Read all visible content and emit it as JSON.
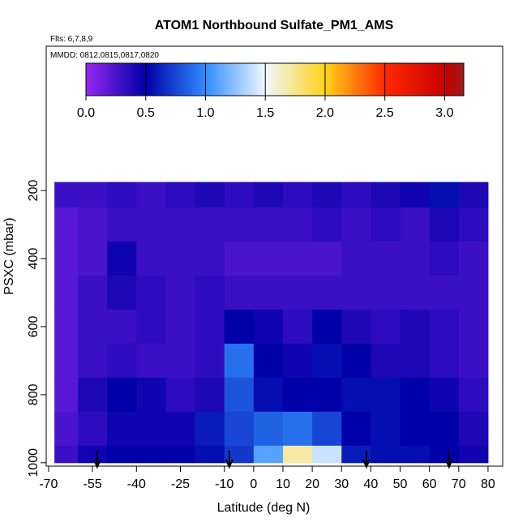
{
  "chart_data": {
    "type": "heatmap",
    "title": "ATOM1 Northbound Sulfate_PM1_AMS",
    "subtitle": "Flts: 6,7,8,9",
    "annotation": "MMDD: 0812,0815,0817,0820",
    "x_label": "Latitude (deg N)",
    "y_label": "PSXC (mbar)",
    "xlim": [
      -70.8,
      85
    ],
    "ylim": [
      1010,
      -224
    ],
    "xticks": [
      -70,
      -55,
      -40,
      -25,
      -10,
      0,
      10,
      20,
      30,
      40,
      50,
      60,
      70,
      80
    ],
    "yticks": [
      200,
      400,
      600,
      800,
      1000
    ],
    "x_edges": [
      -68,
      -60,
      -50,
      -40,
      -30,
      -20,
      -10,
      0,
      10,
      20,
      30,
      40,
      50,
      60,
      70,
      80
    ],
    "y_edges": [
      175,
      250,
      350,
      450,
      550,
      650,
      750,
      850,
      950,
      1000
    ],
    "z": [
      [
        0.3,
        0.3,
        0.35,
        0.3,
        0.35,
        0.4,
        0.35,
        0.4,
        0.35,
        0.4,
        0.35,
        0.4,
        0.45,
        0.55,
        0.4
      ],
      [
        0.2,
        0.25,
        0.3,
        0.3,
        0.3,
        0.3,
        0.3,
        0.3,
        0.3,
        0.35,
        0.3,
        0.35,
        0.3,
        0.4,
        0.35
      ],
      [
        0.2,
        0.25,
        0.45,
        0.3,
        0.3,
        0.3,
        0.25,
        0.25,
        0.25,
        0.25,
        0.3,
        0.3,
        0.3,
        0.35,
        0.3
      ],
      [
        0.2,
        0.3,
        0.4,
        0.35,
        0.3,
        0.35,
        0.3,
        0.3,
        0.3,
        0.3,
        0.3,
        0.3,
        0.3,
        0.3,
        0.3
      ],
      [
        0.2,
        0.3,
        0.3,
        0.35,
        0.3,
        0.35,
        0.5,
        0.45,
        0.35,
        0.5,
        0.4,
        0.35,
        0.4,
        0.35,
        0.3
      ],
      [
        0.2,
        0.3,
        0.35,
        0.3,
        0.3,
        0.35,
        0.9,
        0.5,
        0.45,
        0.55,
        0.5,
        0.4,
        0.4,
        0.35,
        0.3
      ],
      [
        0.2,
        0.4,
        0.5,
        0.45,
        0.35,
        0.4,
        0.8,
        0.55,
        0.5,
        0.5,
        0.55,
        0.55,
        0.5,
        0.45,
        0.35
      ],
      [
        0.25,
        0.35,
        0.45,
        0.45,
        0.45,
        0.6,
        0.75,
        0.85,
        0.9,
        0.75,
        0.5,
        0.55,
        0.5,
        0.5,
        0.4
      ],
      [
        0.3,
        0.45,
        0.5,
        0.5,
        0.5,
        0.55,
        0.7,
        1.1,
        1.7,
        1.4,
        0.6,
        0.55,
        0.55,
        0.5,
        0.45
      ]
    ],
    "zlim": [
      0,
      3.16
    ],
    "colorbar_ticks": [
      {
        "value": 0,
        "label": "0.0"
      },
      0.5,
      {
        "value": 1,
        "label": "1.0"
      },
      1.5,
      {
        "value": 2,
        "label": "2.0"
      },
      2.5,
      {
        "value": 3,
        "label": "3.0"
      }
    ],
    "colorscale": [
      [
        0,
        "#9428f0"
      ],
      [
        0.5,
        "#0000a8"
      ],
      [
        1,
        "#2f8cff"
      ],
      [
        1.5,
        "#eef8ff"
      ],
      [
        2,
        "#ffd21a"
      ],
      [
        2.5,
        "#ff2a00"
      ],
      [
        3,
        "#c80000"
      ],
      [
        3.16,
        "#a01818"
      ]
    ],
    "markers": [
      -53.4,
      -8.3,
      38.5,
      66.7
    ]
  }
}
